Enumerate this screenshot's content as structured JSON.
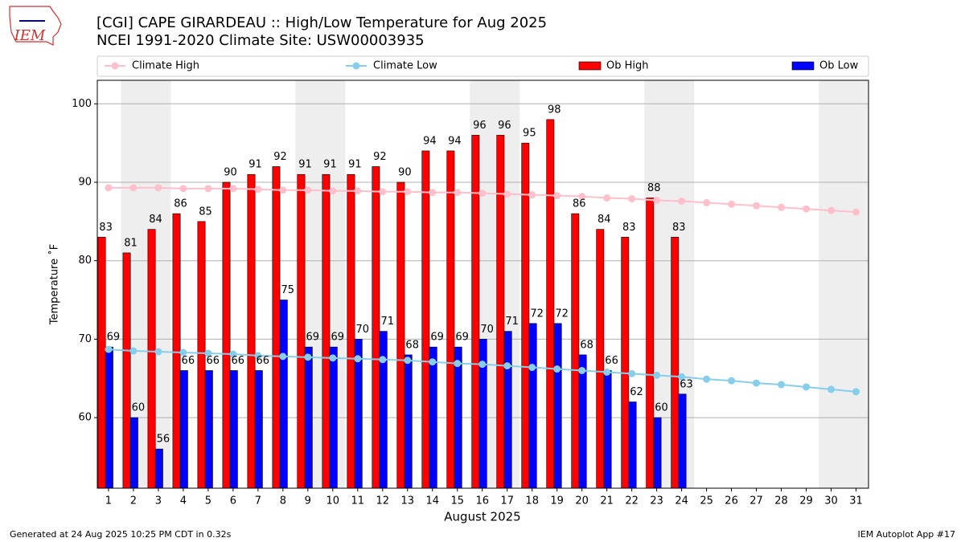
{
  "logo": "IEM",
  "footer": {
    "left": "Generated at 24 Aug 2025 10:25 PM CDT in 0.32s",
    "right": "IEM Autoplot App #17"
  },
  "chart_data": {
    "type": "bar",
    "title": "[CGI] CAPE GIRARDEAU :: High/Low Temperature for Aug 2025",
    "subtitle": "NCEI 1991-2020 Climate Site: USW00003935",
    "x_label": "August 2025",
    "y_label": "Temperature ˚F",
    "x": [
      1,
      2,
      3,
      4,
      5,
      6,
      7,
      8,
      9,
      10,
      11,
      12,
      13,
      14,
      15,
      16,
      17,
      18,
      19,
      20,
      21,
      22,
      23,
      24,
      25,
      26,
      27,
      28,
      29,
      30,
      31
    ],
    "xlim": [
      0.55,
      31.5
    ],
    "xticks": [
      1,
      2,
      3,
      4,
      5,
      6,
      7,
      8,
      9,
      10,
      11,
      12,
      13,
      14,
      15,
      16,
      17,
      18,
      19,
      20,
      21,
      22,
      23,
      24,
      25,
      26,
      27,
      28,
      29,
      30,
      31
    ],
    "ylim": [
      51,
      103
    ],
    "yticks": [
      60,
      70,
      80,
      90,
      100
    ],
    "grid": true,
    "series": [
      {
        "name": "Climate High",
        "type": "line",
        "color": "#ffc0cb",
        "values": [
          89.3,
          89.3,
          89.3,
          89.2,
          89.2,
          89.2,
          89.1,
          89.0,
          89.0,
          88.9,
          88.9,
          88.8,
          88.8,
          88.7,
          88.7,
          88.6,
          88.5,
          88.4,
          88.3,
          88.2,
          88.0,
          87.9,
          87.7,
          87.6,
          87.4,
          87.2,
          87.0,
          86.8,
          86.6,
          86.4,
          86.2
        ]
      },
      {
        "name": "Climate Low",
        "type": "line",
        "color": "#87ceeb",
        "values": [
          68.7,
          68.5,
          68.4,
          68.3,
          68.2,
          68.1,
          67.9,
          67.8,
          67.7,
          67.6,
          67.5,
          67.4,
          67.3,
          67.1,
          66.9,
          66.8,
          66.6,
          66.4,
          66.2,
          66.0,
          65.8,
          65.6,
          65.4,
          65.2,
          64.9,
          64.7,
          64.4,
          64.2,
          63.9,
          63.6,
          63.3
        ]
      },
      {
        "name": "Ob High",
        "type": "bar",
        "color": "#ff0000",
        "values": [
          83,
          81,
          84,
          86,
          85,
          90,
          91,
          92,
          91,
          91,
          91,
          92,
          90,
          94,
          94,
          96,
          96,
          95,
          98,
          86,
          84,
          83,
          88,
          83,
          null,
          null,
          null,
          null,
          null,
          null,
          null
        ]
      },
      {
        "name": "Ob Low",
        "type": "bar",
        "color": "#0000ff",
        "values": [
          69,
          60,
          56,
          66,
          66,
          66,
          66,
          75,
          69,
          69,
          70,
          71,
          68,
          69,
          69,
          70,
          71,
          72,
          72,
          68,
          66,
          62,
          60,
          63,
          null,
          null,
          null,
          null,
          null,
          null,
          null
        ]
      }
    ]
  }
}
